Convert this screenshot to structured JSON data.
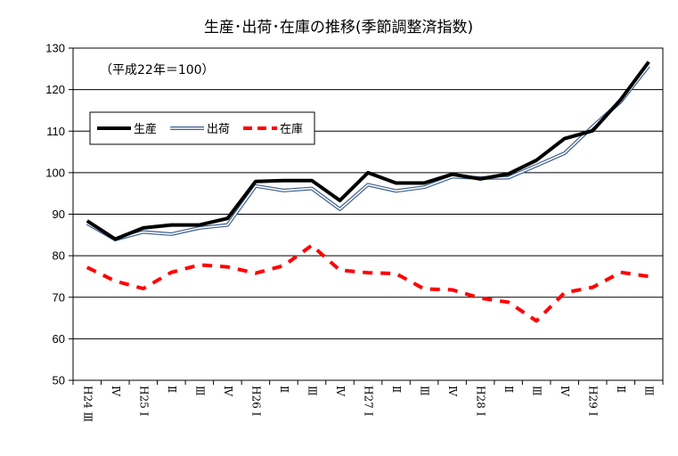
{
  "chart_data": {
    "type": "line",
    "title": "生産･出荷･在庫の推移(季節調整済指数)",
    "note": "（平成22年＝100）",
    "ylim": [
      50,
      130
    ],
    "yticks": [
      50,
      60,
      70,
      80,
      90,
      100,
      110,
      120,
      130
    ],
    "grid": true,
    "legend_position": "top-left",
    "categories": [
      "H24 Ⅲ",
      "Ⅳ",
      "H25 Ⅰ",
      "Ⅱ",
      "Ⅲ",
      "Ⅳ",
      "H26 Ⅰ",
      "Ⅱ",
      "Ⅲ",
      "Ⅳ",
      "H27 Ⅰ",
      "Ⅱ",
      "Ⅲ",
      "Ⅳ",
      "H28 Ⅰ",
      "Ⅱ",
      "Ⅲ",
      "Ⅳ",
      "H29 Ⅰ",
      "Ⅱ",
      "Ⅲ"
    ],
    "series": [
      {
        "name": "生産",
        "style": "solid-thick",
        "color": "#000000",
        "values": [
          88.4,
          84.0,
          86.7,
          87.4,
          87.4,
          89.0,
          97.9,
          98.1,
          98.1,
          93.3,
          100.0,
          97.5,
          97.5,
          99.6,
          98.5,
          99.7,
          103.0,
          108.2,
          110.1,
          117.6,
          126.7
        ]
      },
      {
        "name": "出荷",
        "style": "double-line",
        "color": "#3f5f8f",
        "values": [
          87.8,
          83.9,
          85.7,
          85.2,
          86.7,
          87.4,
          96.8,
          95.7,
          96.2,
          91.2,
          97.1,
          95.6,
          96.5,
          99.0,
          98.7,
          98.8,
          101.7,
          104.7,
          111.1,
          117.1,
          125.7
        ]
      },
      {
        "name": "在庫",
        "style": "dashed",
        "color": "#ff0000",
        "values": [
          77.2,
          73.9,
          72.1,
          76.0,
          77.8,
          77.3,
          75.8,
          77.6,
          82.5,
          76.5,
          75.9,
          75.7,
          72.0,
          71.8,
          69.8,
          68.8,
          64.3,
          71.1,
          72.4,
          76.0,
          75.0
        ]
      }
    ]
  }
}
